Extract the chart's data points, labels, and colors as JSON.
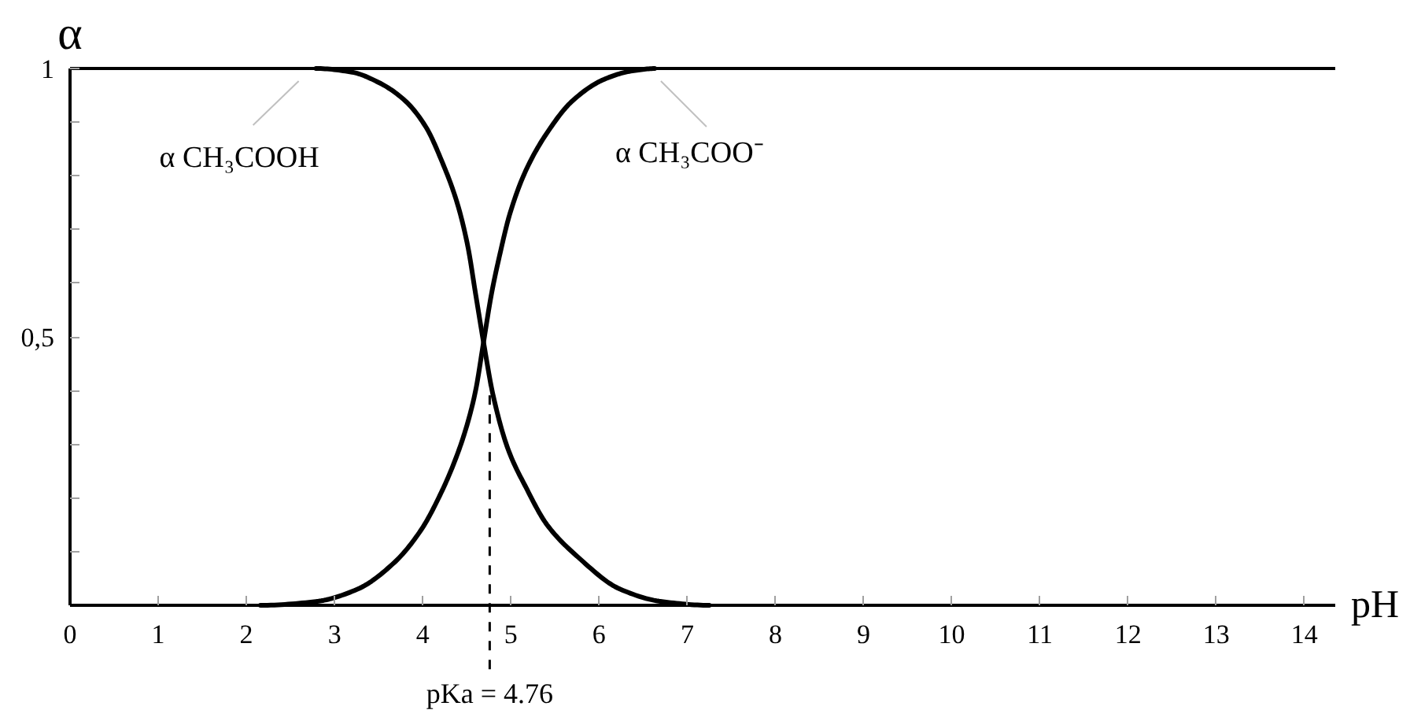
{
  "chart_data": {
    "type": "line",
    "xlabel": "pH",
    "ylabel": "α",
    "xlim": [
      0,
      14.35
    ],
    "ylim": [
      0,
      1
    ],
    "xticks": [
      0,
      1,
      2,
      3,
      4,
      5,
      6,
      7,
      8,
      9,
      10,
      11,
      12,
      13,
      14
    ],
    "yticks": [
      {
        "value": 0.1,
        "label": null
      },
      {
        "value": 0.2,
        "label": null
      },
      {
        "value": 0.3,
        "label": null
      },
      {
        "value": 0.4,
        "label": null
      },
      {
        "value": 0.5,
        "label": "0,5"
      },
      {
        "value": 0.6,
        "label": null
      },
      {
        "value": 0.7,
        "label": null
      },
      {
        "value": 0.8,
        "label": null
      },
      {
        "value": 0.9,
        "label": null
      },
      1
    ],
    "series": [
      {
        "name": "α CH₃COOH",
        "color": "#000000",
        "x": [
          2.79,
          3.2,
          3.5,
          3.8,
          4.04,
          4.21,
          4.39,
          4.51,
          4.6,
          4.69,
          4.8,
          4.97,
          5.17,
          5.41,
          5.76,
          6.24,
          6.71,
          7.25
        ],
        "values": [
          1.0,
          0.993,
          0.974,
          0.94,
          0.89,
          0.83,
          0.75,
          0.67,
          0.58,
          0.49,
          0.39,
          0.29,
          0.22,
          0.15,
          0.09,
          0.03,
          0.007,
          0
        ]
      },
      {
        "name": "α CH₃COO⁻",
        "color": "#000000",
        "x": [
          2.16,
          2.79,
          3.26,
          3.68,
          3.98,
          4.21,
          4.39,
          4.51,
          4.6,
          4.69,
          4.78,
          4.87,
          4.99,
          5.17,
          5.41,
          5.7,
          6.06,
          6.36,
          6.63
        ],
        "values": [
          0,
          0.007,
          0.03,
          0.08,
          0.14,
          0.21,
          0.28,
          0.34,
          0.4,
          0.49,
          0.58,
          0.65,
          0.73,
          0.81,
          0.88,
          0.94,
          0.98,
          0.995,
          1.0
        ]
      }
    ],
    "ref_lines": [
      {
        "axis": "x",
        "value": 4.76,
        "label": "pKa = 4.76",
        "line_style": "dashed",
        "color": "#000000"
      }
    ]
  }
}
